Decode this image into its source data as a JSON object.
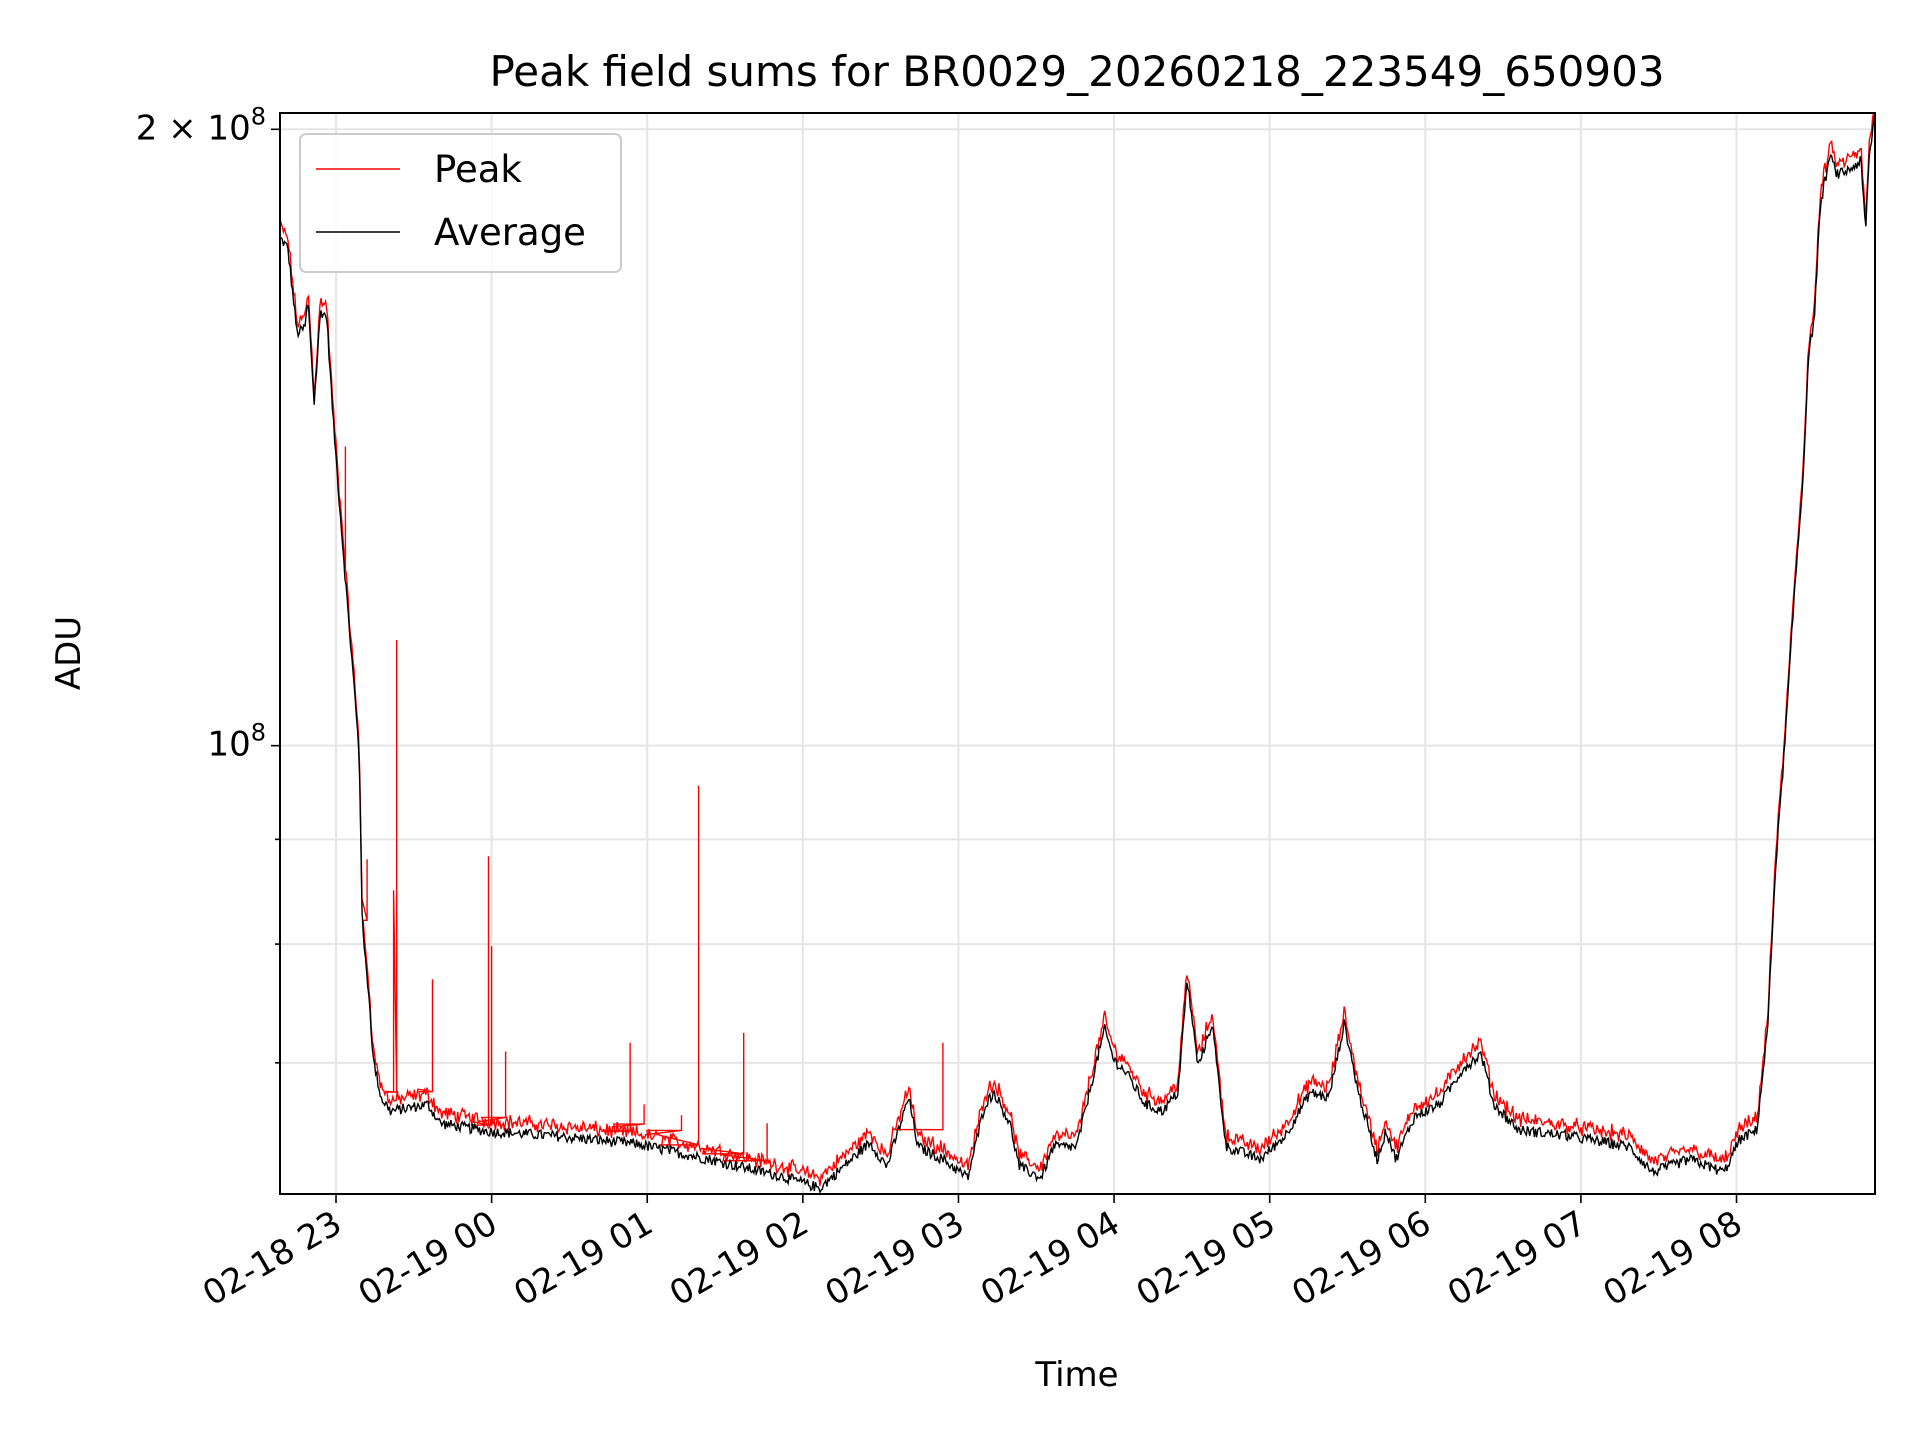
{
  "chart_data": {
    "type": "line",
    "title": "Peak field sums for BR0029_20260218_223549_650903",
    "xlabel": "Time",
    "ylabel": "ADU",
    "yscale": "log",
    "ylim": [
      60400000,
      203700000
    ],
    "x_units": "hours since 2026-02-18 00:00",
    "xlim": [
      22.64,
      32.89
    ],
    "grid": true,
    "legend_placement": "upper-left",
    "x_ticks": [
      {
        "value": 23,
        "label": "02-18 23"
      },
      {
        "value": 24,
        "label": "02-19 00"
      },
      {
        "value": 25,
        "label": "02-19 01"
      },
      {
        "value": 26,
        "label": "02-19 02"
      },
      {
        "value": 27,
        "label": "02-19 03"
      },
      {
        "value": 28,
        "label": "02-19 04"
      },
      {
        "value": 29,
        "label": "02-19 05"
      },
      {
        "value": 30,
        "label": "02-19 06"
      },
      {
        "value": 31,
        "label": "02-19 07"
      },
      {
        "value": 32,
        "label": "02-19 08"
      }
    ],
    "y_ticks_major": [
      {
        "value": 100000000,
        "label_base": "10",
        "label_exp": "8",
        "label_prefix": ""
      },
      {
        "value": 200000000,
        "label_base": "10",
        "label_exp": "8",
        "label_prefix": "2 × "
      }
    ],
    "y_ticks_minor": [
      70000000,
      80000000,
      90000000
    ],
    "series": [
      {
        "name": "Peak",
        "color": "#ff0000",
        "ratio_to_average": 1.012,
        "spikes": [
          {
            "x": 23.06,
            "y": 140000000
          },
          {
            "x": 23.2,
            "y": 88000000
          },
          {
            "x": 23.37,
            "y": 85000000
          },
          {
            "x": 23.39,
            "y": 112600000
          },
          {
            "x": 23.62,
            "y": 76900000
          },
          {
            "x": 23.98,
            "y": 88300000
          },
          {
            "x": 24.0,
            "y": 79800000
          },
          {
            "x": 24.09,
            "y": 70900000
          },
          {
            "x": 24.89,
            "y": 71600000
          },
          {
            "x": 24.98,
            "y": 66800000
          },
          {
            "x": 25.22,
            "y": 66000000
          },
          {
            "x": 25.33,
            "y": 95600000
          },
          {
            "x": 25.62,
            "y": 72400000
          },
          {
            "x": 25.77,
            "y": 65400000
          },
          {
            "x": 26.9,
            "y": 71600000
          }
        ]
      },
      {
        "name": "Average",
        "color": "#000000",
        "x": [
          22.64,
          22.69,
          22.75,
          22.8,
          22.82,
          22.86,
          22.9,
          22.94,
          22.98,
          23.02,
          23.07,
          23.12,
          23.15,
          23.17,
          23.21,
          23.24,
          23.29,
          23.35,
          23.59,
          23.67,
          23.98,
          24.38,
          24.93,
          25.4,
          25.87,
          26.11,
          26.43,
          26.54,
          26.68,
          26.74,
          26.9,
          27.06,
          27.17,
          27.23,
          27.33,
          27.39,
          27.53,
          27.61,
          27.76,
          27.88,
          27.94,
          28.0,
          28.08,
          28.2,
          28.31,
          28.41,
          28.47,
          28.54,
          28.63,
          28.72,
          28.94,
          29.1,
          29.26,
          29.38,
          29.48,
          29.57,
          29.69,
          29.75,
          29.81,
          29.93,
          30.09,
          30.24,
          30.36,
          30.44,
          30.6,
          30.91,
          31.31,
          31.46,
          31.7,
          31.92,
          32.02,
          32.13,
          32.2,
          32.25,
          32.31,
          32.37,
          32.43,
          32.46,
          32.5,
          32.54,
          32.6,
          32.65,
          32.72,
          32.8,
          32.83,
          32.85,
          32.89
        ],
        "y": [
          177000000,
          175000000,
          159000000,
          160000000,
          165000000,
          147000000,
          163000000,
          162000000,
          145000000,
          132000000,
          118000000,
          106000000,
          98700000,
          81200000,
          75800000,
          70200000,
          67300000,
          66300000,
          66800000,
          65400000,
          64800000,
          64500000,
          63900000,
          62800000,
          61600000,
          60800000,
          64000000,
          62300000,
          67300000,
          63700000,
          62800000,
          61500000,
          66800000,
          67700000,
          65400000,
          62300000,
          61500000,
          63700000,
          63700000,
          69700000,
          72700000,
          70200000,
          69200000,
          66800000,
          66300000,
          67700000,
          76800000,
          69700000,
          73200000,
          63700000,
          62800000,
          64500000,
          67700000,
          67300000,
          73200000,
          67700000,
          62800000,
          64900000,
          62800000,
          65900000,
          66800000,
          69500000,
          70700000,
          66800000,
          64900000,
          64500000,
          63700000,
          61900000,
          62800000,
          61900000,
          64200000,
          64900000,
          72700000,
          87100000,
          100000000,
          118000000,
          136000000,
          154000000,
          162000000,
          184000000,
          194000000,
          190000000,
          191000000,
          193000000,
          178000000,
          193000000,
          204000000
        ]
      }
    ]
  }
}
